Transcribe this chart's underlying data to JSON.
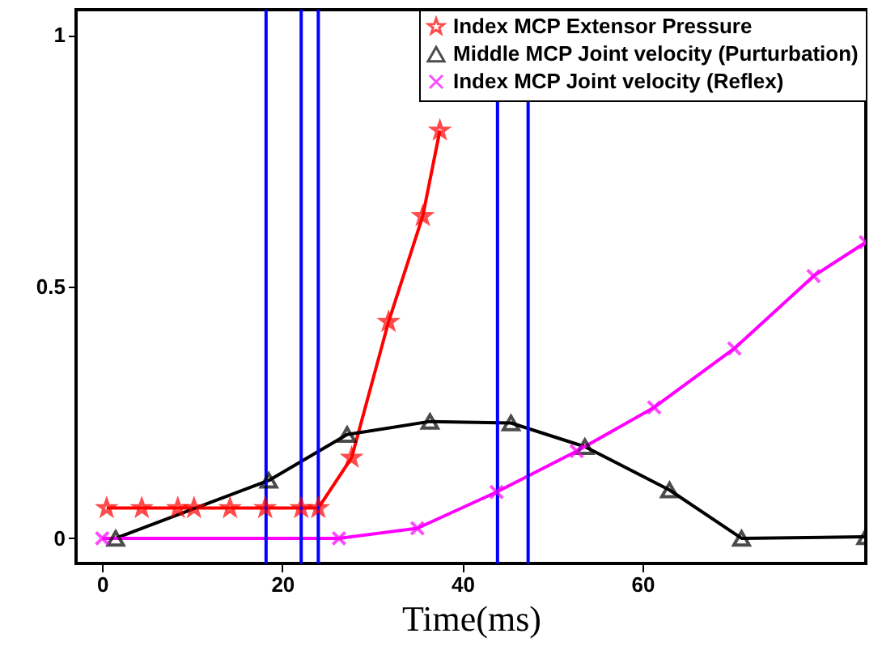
{
  "chart_data": {
    "type": "line",
    "xlabel": "Time(ms)",
    "xlim": [
      -2.9,
      84.8
    ],
    "ylim": [
      -0.05,
      1.05
    ],
    "xticks": [
      0,
      20,
      40,
      60
    ],
    "yticks": [
      0,
      0.5,
      1
    ],
    "grid": false,
    "legend": "top right",
    "series": [
      {
        "name": "Index MCP Extensor Pressure",
        "color": "#ff0000",
        "marker": "star",
        "x": [
          0.5,
          4.4,
          8.4,
          10.2,
          14.2,
          18.1,
          22.1,
          24.0,
          27.7,
          31.8,
          35.6,
          37.5
        ],
        "values": [
          0.06,
          0.06,
          0.06,
          0.06,
          0.06,
          0.06,
          0.06,
          0.06,
          0.16,
          0.43,
          0.64,
          0.81
        ]
      },
      {
        "name": "Middle MCP Joint velocity (Purturbation)",
        "color": "#000000",
        "marker": "triangle",
        "x": [
          1.5,
          18.5,
          27.2,
          36.4,
          45.4,
          53.6,
          63.0,
          71.0,
          84.8
        ],
        "values": [
          0,
          0.115,
          0.206,
          0.232,
          0.229,
          0.182,
          0.096,
          0,
          0.003
        ]
      },
      {
        "name": "Index MCP Joint velocity (Reflex)",
        "color": "#ff00ff",
        "marker": "cross",
        "x": [
          0,
          26.3,
          35.0,
          43.8,
          52.7,
          61.3,
          70.2,
          79.0,
          84.8
        ],
        "values": [
          0,
          0,
          0.02,
          0.092,
          0.173,
          0.26,
          0.377,
          0.521,
          0.588
        ]
      }
    ],
    "ref_lines": [
      {
        "axis": "x",
        "value": 18.2,
        "color": "#0000ff"
      },
      {
        "axis": "x",
        "value": 22.1,
        "color": "#0000ff"
      },
      {
        "axis": "x",
        "value": 24.0,
        "color": "#0000ff"
      },
      {
        "axis": "x",
        "value": 43.9,
        "color": "#0000ff"
      },
      {
        "axis": "x",
        "value": 47.3,
        "color": "#0000ff"
      }
    ]
  }
}
